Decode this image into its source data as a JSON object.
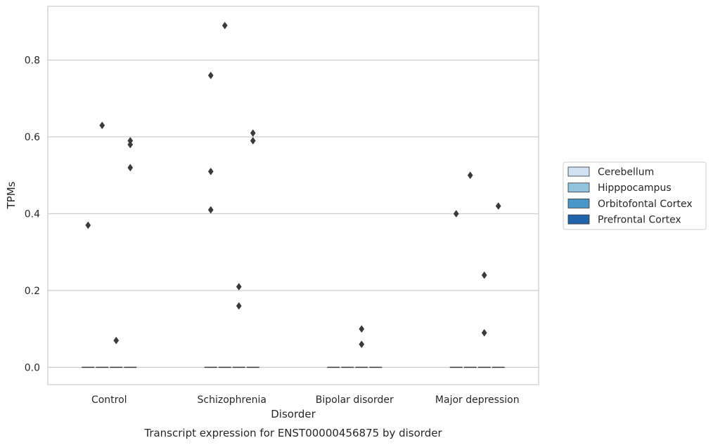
{
  "caption": "Transcript expression for ENST00000456875 by disorder",
  "chart_data": {
    "type": "box",
    "title": "",
    "xlabel": "Disorder",
    "ylabel": "TPMs",
    "ylim": [
      -0.045,
      0.94
    ],
    "yticks": [
      0.0,
      0.2,
      0.4,
      0.6,
      0.8
    ],
    "ytick_labels": [
      "0.0",
      "0.2",
      "0.4",
      "0.6",
      "0.8"
    ],
    "grid": "horizontal",
    "legend_position": "right",
    "categories": [
      "Control",
      "Schizophrenia",
      "Bipolar disorder",
      "Major depression"
    ],
    "series": [
      {
        "name": "Cerebellum",
        "color": "#cfe1f2",
        "median": [
          0,
          0,
          0,
          0
        ],
        "outliers": [
          [
            0.37
          ],
          [
            0.41,
            0.51,
            0.76
          ],
          [],
          [
            0.4
          ]
        ]
      },
      {
        "name": "Hipppocampus",
        "color": "#93c4de",
        "median": [
          0,
          0,
          0,
          0
        ],
        "outliers": [
          [
            0.63
          ],
          [
            0.89
          ],
          [],
          [
            0.5
          ]
        ]
      },
      {
        "name": "Orbitofontal Cortex",
        "color": "#4a98c9",
        "median": [
          0,
          0,
          0,
          0
        ],
        "outliers": [
          [
            0.07
          ],
          [
            0.16,
            0.21
          ],
          [
            0.06,
            0.1
          ],
          [
            0.09,
            0.24
          ]
        ]
      },
      {
        "name": "Prefrontal Cortex",
        "color": "#2164ab",
        "median": [
          0,
          0,
          0,
          0
        ],
        "outliers": [
          [
            0.52,
            0.58,
            0.59
          ],
          [
            0.59,
            0.61
          ],
          [],
          [
            0.42
          ]
        ]
      }
    ]
  }
}
